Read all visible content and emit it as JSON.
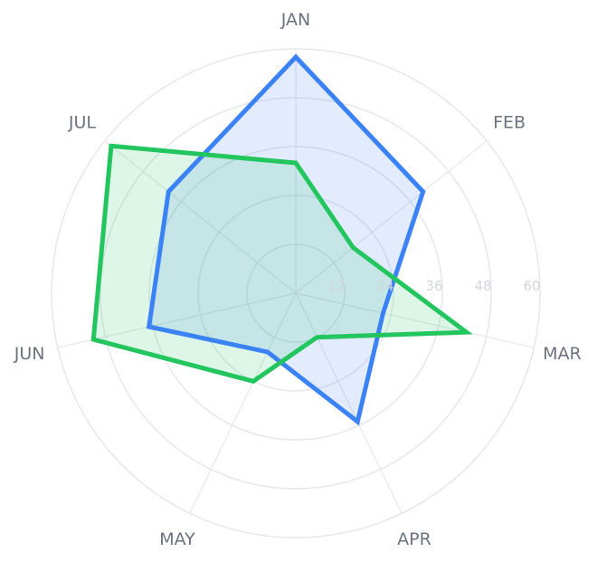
{
  "chart_data": {
    "type": "radar",
    "categories": [
      "JAN",
      "FEB",
      "MAR",
      "APR",
      "MAY",
      "JUN",
      "JUL"
    ],
    "rlim": [
      0,
      60
    ],
    "r_ticks": [
      12,
      24,
      36,
      48,
      60
    ],
    "grid": true,
    "series": [
      {
        "color": "#3b82f6",
        "fill": "rgba(59,130,246,0.15)",
        "values": [
          58,
          40,
          22,
          35,
          16,
          37,
          40
        ]
      },
      {
        "color": "#22c55e",
        "fill": "rgba(34,197,94,0.15)",
        "values": [
          32,
          18,
          43,
          12,
          24,
          51,
          58
        ]
      }
    ]
  }
}
